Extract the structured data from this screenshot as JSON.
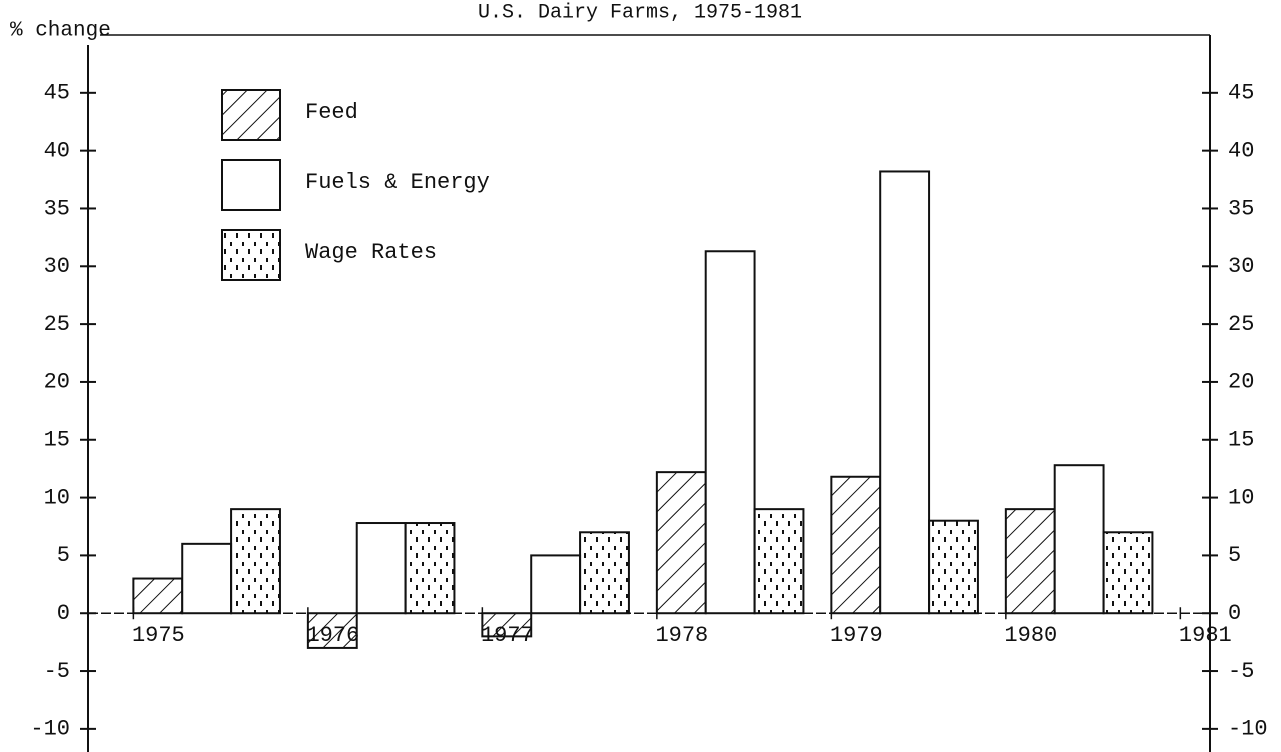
{
  "chart_data": {
    "type": "bar",
    "title": "U.S. Dairy Farms, 1975-1981",
    "ylabel": "% change",
    "xticks": [
      1975,
      1976,
      1977,
      1978,
      1979,
      1980,
      1981
    ],
    "xlim": [
      1974.74,
      1981.17
    ],
    "ylim": [
      -12,
      50
    ],
    "yticks": [
      -10,
      -5,
      0,
      5,
      10,
      15,
      20,
      25,
      30,
      35,
      40,
      45
    ],
    "series": [
      {
        "name": "Feed",
        "color": "#111111",
        "pattern": "hatch",
        "values": [
          3,
          -3,
          -2,
          12.2,
          11.8,
          9
        ]
      },
      {
        "name": "Fuels & Energy",
        "color": "#111111",
        "pattern": "none",
        "values": [
          6,
          7.8,
          5,
          31.3,
          38.2,
          12.8
        ]
      },
      {
        "name": "Wage Rates",
        "color": "#111111",
        "pattern": "dots",
        "values": [
          9,
          7.8,
          7,
          9,
          8,
          7
        ]
      }
    ],
    "legend": "upper left",
    "right_axis_labels": true
  }
}
